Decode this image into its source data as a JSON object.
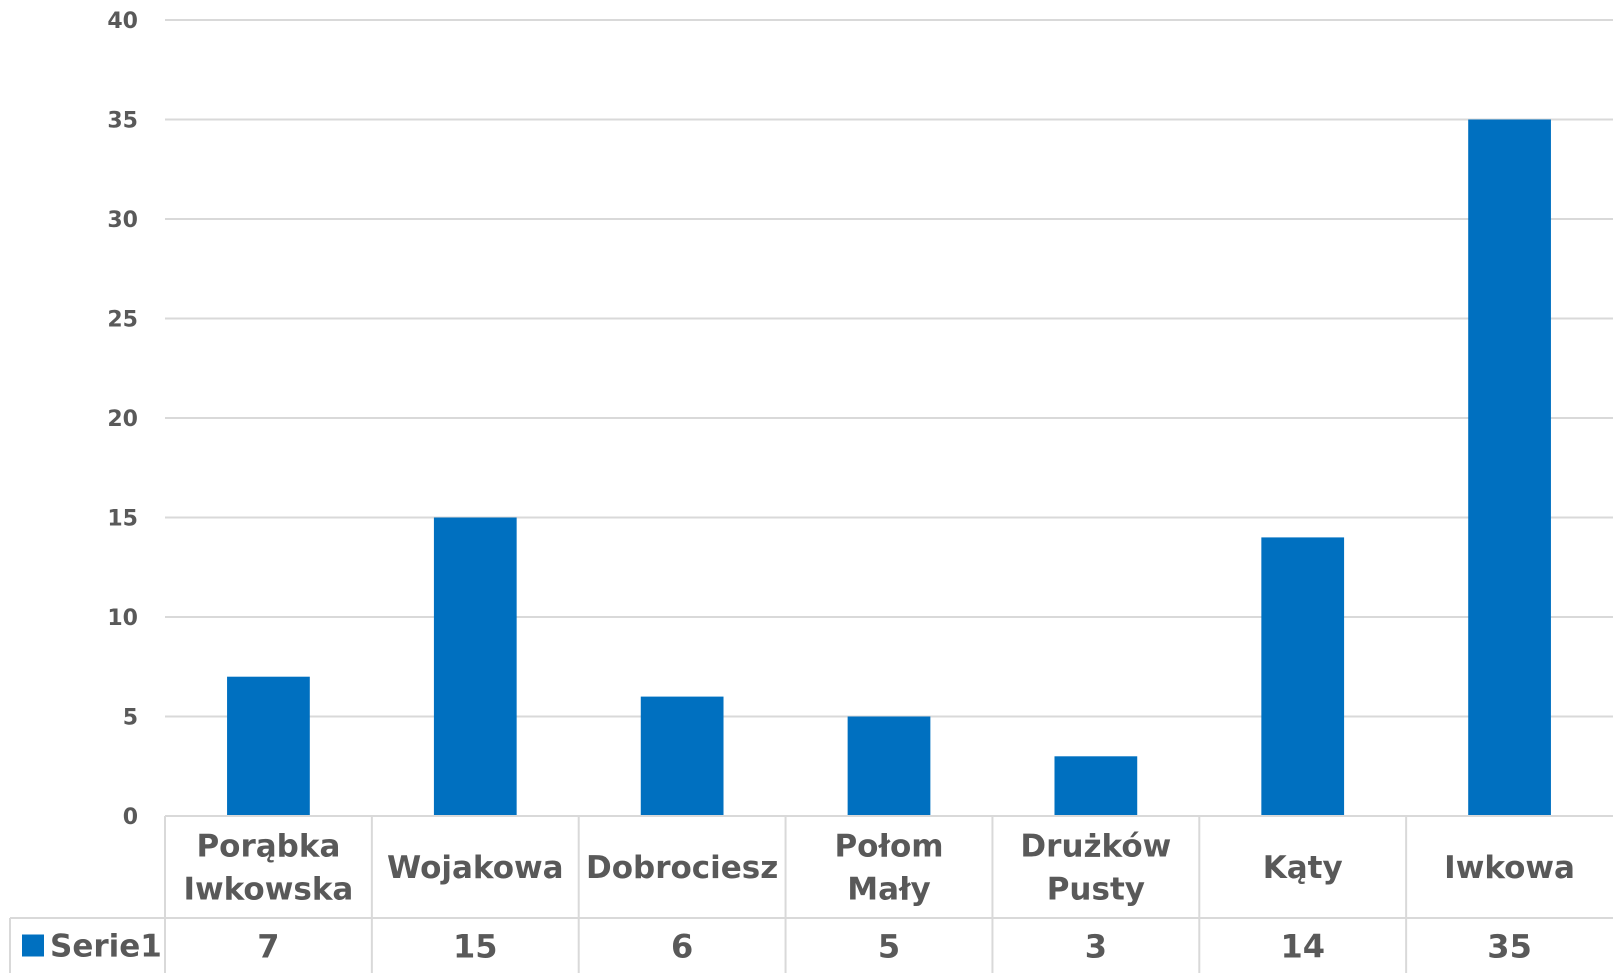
{
  "chart_data": {
    "type": "bar",
    "categories": [
      [
        "Porąbka",
        "Iwkowska"
      ],
      [
        "Wojakowa"
      ],
      [
        "Dobrociesz"
      ],
      [
        "Połom",
        "Mały"
      ],
      [
        "Drużków",
        "Pusty"
      ],
      [
        "Kąty"
      ],
      [
        "Iwkowa"
      ]
    ],
    "series": [
      {
        "name": "Serie1",
        "values": [
          7,
          15,
          6,
          5,
          3,
          14,
          35
        ],
        "color": "#0070C0"
      }
    ],
    "ylim": [
      0,
      40
    ],
    "yticks": [
      0,
      5,
      10,
      15,
      20,
      25,
      30,
      35,
      40
    ],
    "ytick_labels": [
      "0",
      "5",
      "10",
      "15",
      "20",
      "25",
      "30",
      "35",
      "40"
    ],
    "grid": true,
    "legend": "data-table",
    "data_table": true,
    "colors": {
      "bar": "#0070C0",
      "grid": "#D9D9D9",
      "text": "#595959"
    }
  }
}
